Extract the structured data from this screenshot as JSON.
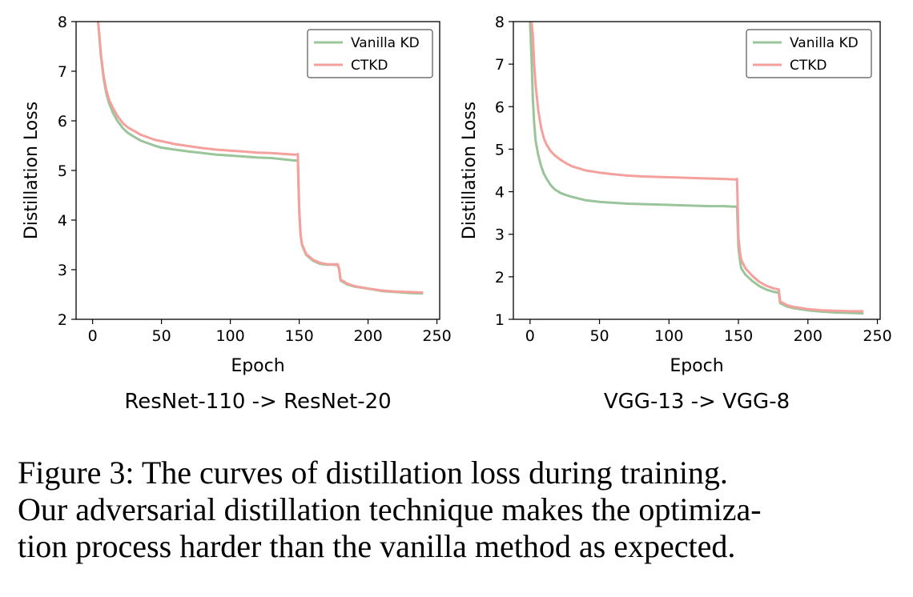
{
  "chart_data": [
    {
      "type": "line",
      "subtitle": "ResNet-110 -> ResNet-20",
      "xlabel": "Epoch",
      "ylabel": "Distillation Loss",
      "xlim": [
        -12,
        252
      ],
      "ylim": [
        2,
        8
      ],
      "xticks": [
        0,
        50,
        100,
        150,
        200,
        250
      ],
      "yticks": [
        2,
        3,
        4,
        5,
        6,
        7,
        8
      ],
      "grid": false,
      "legend": "top-right",
      "series": [
        {
          "name": "Vanilla KD",
          "color": "#9ac49a",
          "x": [
            4,
            6,
            8,
            10,
            12,
            15,
            18,
            22,
            26,
            30,
            35,
            40,
            45,
            50,
            60,
            70,
            80,
            90,
            100,
            110,
            120,
            130,
            140,
            147,
            148,
            149,
            150,
            151,
            152,
            155,
            160,
            165,
            170,
            175,
            178,
            179,
            180,
            185,
            190,
            200,
            210,
            220,
            230,
            240
          ],
          "y": [
            8.0,
            7.3,
            6.85,
            6.55,
            6.35,
            6.15,
            6.0,
            5.85,
            5.75,
            5.68,
            5.6,
            5.55,
            5.5,
            5.46,
            5.42,
            5.38,
            5.35,
            5.32,
            5.3,
            5.28,
            5.26,
            5.25,
            5.22,
            5.2,
            5.2,
            5.2,
            4.2,
            3.7,
            3.5,
            3.3,
            3.18,
            3.12,
            3.1,
            3.1,
            3.09,
            3.0,
            2.78,
            2.7,
            2.66,
            2.62,
            2.57,
            2.55,
            2.53,
            2.52
          ]
        },
        {
          "name": "CTKD",
          "color": "#f4a09c",
          "x": [
            4,
            6,
            8,
            10,
            12,
            15,
            18,
            22,
            26,
            30,
            35,
            40,
            45,
            50,
            60,
            70,
            80,
            90,
            100,
            110,
            120,
            130,
            140,
            147,
            148,
            149,
            150,
            151,
            152,
            155,
            160,
            165,
            170,
            175,
            178,
            179,
            180,
            185,
            190,
            200,
            210,
            220,
            230,
            240
          ],
          "y": [
            8.0,
            7.35,
            6.9,
            6.62,
            6.42,
            6.25,
            6.1,
            5.95,
            5.86,
            5.8,
            5.72,
            5.67,
            5.62,
            5.59,
            5.53,
            5.49,
            5.45,
            5.42,
            5.4,
            5.38,
            5.36,
            5.35,
            5.33,
            5.32,
            5.32,
            5.33,
            4.2,
            3.72,
            3.52,
            3.32,
            3.2,
            3.14,
            3.11,
            3.11,
            3.11,
            3.02,
            2.8,
            2.72,
            2.67,
            2.62,
            2.58,
            2.56,
            2.55,
            2.54
          ]
        }
      ]
    },
    {
      "type": "line",
      "subtitle": "VGG-13 -> VGG-8",
      "xlabel": "Epoch",
      "ylabel": "Distillation Loss",
      "xlim": [
        -12,
        252
      ],
      "ylim": [
        1,
        8
      ],
      "xticks": [
        0,
        50,
        100,
        150,
        200,
        250
      ],
      "yticks": [
        1,
        2,
        3,
        4,
        5,
        6,
        7,
        8
      ],
      "grid": false,
      "legend": "top-right",
      "series": [
        {
          "name": "Vanilla KD",
          "color": "#9ac49a",
          "x": [
            0,
            1,
            2,
            3,
            4,
            6,
            8,
            10,
            12,
            15,
            18,
            22,
            26,
            30,
            35,
            40,
            50,
            60,
            70,
            80,
            90,
            100,
            110,
            120,
            130,
            140,
            147,
            148,
            149,
            150,
            151,
            152,
            155,
            160,
            165,
            170,
            175,
            178,
            179,
            180,
            185,
            190,
            200,
            210,
            220,
            230,
            240
          ],
          "y": [
            8.0,
            7.2,
            6.2,
            5.6,
            5.2,
            4.85,
            4.6,
            4.42,
            4.3,
            4.15,
            4.05,
            3.97,
            3.92,
            3.88,
            3.84,
            3.8,
            3.76,
            3.74,
            3.72,
            3.71,
            3.7,
            3.69,
            3.68,
            3.67,
            3.66,
            3.66,
            3.65,
            3.65,
            3.66,
            2.7,
            2.4,
            2.2,
            2.05,
            1.9,
            1.78,
            1.7,
            1.65,
            1.63,
            1.62,
            1.38,
            1.3,
            1.26,
            1.21,
            1.18,
            1.16,
            1.15,
            1.14
          ]
        },
        {
          "name": "CTKD",
          "color": "#f4a09c",
          "x": [
            1,
            2,
            3,
            4,
            6,
            8,
            10,
            12,
            15,
            18,
            22,
            26,
            30,
            35,
            40,
            50,
            60,
            70,
            80,
            90,
            100,
            110,
            120,
            130,
            140,
            147,
            148,
            149,
            150,
            151,
            152,
            155,
            160,
            165,
            170,
            175,
            178,
            179,
            180,
            185,
            190,
            200,
            210,
            220,
            230,
            240
          ],
          "y": [
            8.0,
            7.7,
            7.0,
            6.5,
            5.9,
            5.5,
            5.25,
            5.1,
            4.95,
            4.85,
            4.75,
            4.67,
            4.6,
            4.55,
            4.5,
            4.45,
            4.41,
            4.38,
            4.36,
            4.35,
            4.34,
            4.33,
            4.32,
            4.31,
            4.3,
            4.29,
            4.29,
            4.3,
            2.95,
            2.6,
            2.4,
            2.2,
            2.02,
            1.88,
            1.79,
            1.73,
            1.71,
            1.7,
            1.42,
            1.33,
            1.29,
            1.24,
            1.21,
            1.2,
            1.19,
            1.19
          ]
        }
      ]
    }
  ],
  "caption": {
    "lines": [
      "Figure 3: The curves of distillation loss during training.",
      "Our adversarial distillation technique makes the optimiza-",
      "tion process harder than the vanilla method as expected."
    ]
  }
}
